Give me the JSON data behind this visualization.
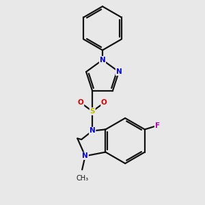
{
  "bg": "#e8e8e8",
  "bc": "#111111",
  "bw": 1.6,
  "dbo": 0.05,
  "atom_colors": {
    "N": "#0000ee",
    "O": "#dd0000",
    "S": "#bbbb00",
    "F": "#bb00bb",
    "C": "#111111"
  },
  "fs": 7.5,
  "xlim": [
    0.2,
    3.0
  ],
  "ylim": [
    0.0,
    5.2
  ]
}
